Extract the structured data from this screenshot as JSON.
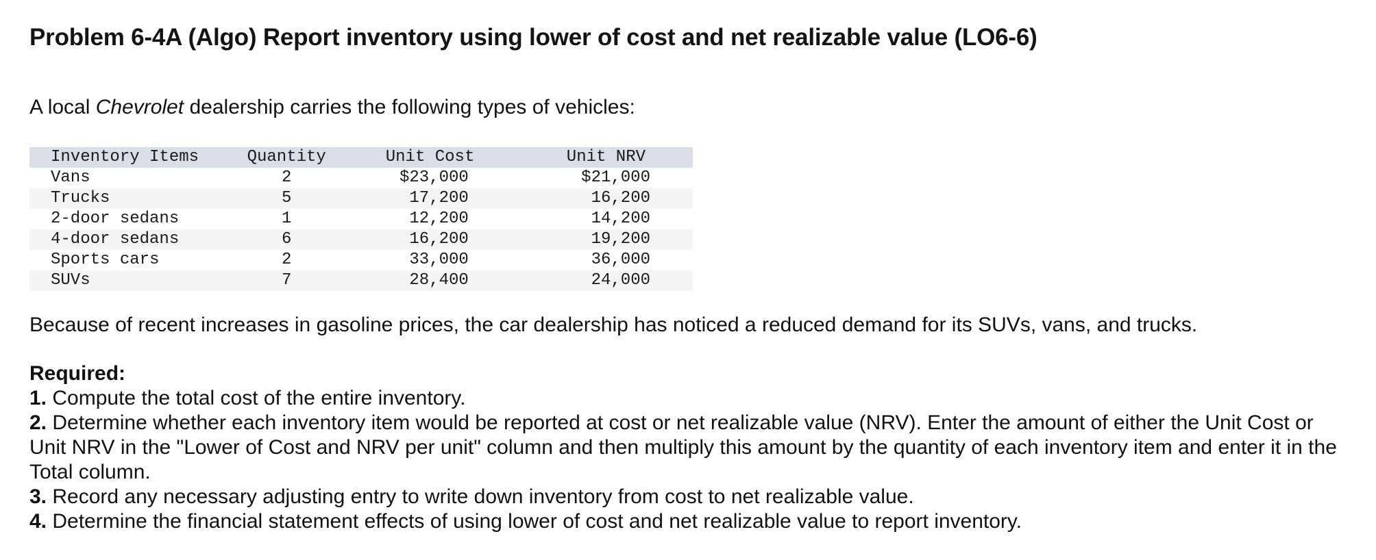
{
  "title": "Problem 6-4A (Algo) Report inventory using lower of cost and net realizable value (LO6-6)",
  "intro": {
    "before": "A local ",
    "brand": "Chevrolet",
    "after": " dealership carries the following types of vehicles:"
  },
  "table": {
    "headers": {
      "item": "Inventory Items",
      "quantity": "Quantity",
      "unit_cost": "Unit Cost",
      "unit_nrv": "Unit NRV"
    },
    "rows": [
      {
        "item": "Vans",
        "quantity": "2",
        "unit_cost": "$23,000",
        "unit_nrv": "$21,000"
      },
      {
        "item": "Trucks",
        "quantity": "5",
        "unit_cost": "17,200",
        "unit_nrv": "16,200"
      },
      {
        "item": "2-door sedans",
        "quantity": "1",
        "unit_cost": "12,200",
        "unit_nrv": "14,200"
      },
      {
        "item": "4-door sedans",
        "quantity": "6",
        "unit_cost": "16,200",
        "unit_nrv": "19,200"
      },
      {
        "item": "Sports cars",
        "quantity": "2",
        "unit_cost": "33,000",
        "unit_nrv": "36,000"
      },
      {
        "item": "SUVs",
        "quantity": "7",
        "unit_cost": "28,400",
        "unit_nrv": "24,000"
      }
    ]
  },
  "paragraph": "Because of recent increases in gasoline prices, the car dealership has noticed a reduced demand for its SUVs, vans, and trucks.",
  "required": {
    "heading": "Required:",
    "steps": [
      {
        "num": "1.",
        "text": " Compute the total cost of the entire inventory."
      },
      {
        "num": "2.",
        "text": " Determine whether each inventory item would be reported at cost or net realizable value (NRV). Enter the amount of either the Unit Cost or Unit NRV in the \"Lower of Cost and NRV per unit\" column and then multiply this amount by the quantity of each inventory item and enter it in the Total column."
      },
      {
        "num": "3.",
        "text": " Record any necessary adjusting entry to write down inventory from cost to net realizable value."
      },
      {
        "num": "4.",
        "text": " Determine the financial statement effects of using lower of cost and net realizable value to report inventory."
      }
    ]
  }
}
